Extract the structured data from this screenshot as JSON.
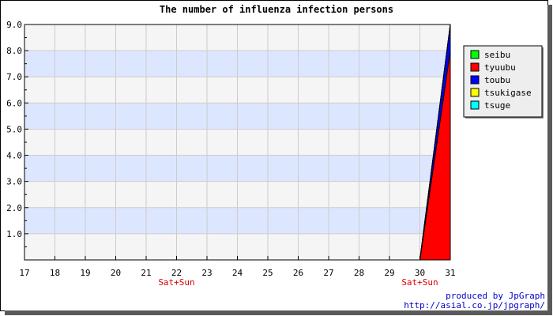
{
  "chart_data": {
    "type": "area",
    "title": "The number of influenza infection persons",
    "xlabel": "",
    "ylabel": "",
    "categories": [
      "17",
      "18",
      "19",
      "20",
      "21",
      "22",
      "23",
      "24",
      "25",
      "26",
      "27",
      "28",
      "29",
      "30",
      "31"
    ],
    "weekend_labels": [
      {
        "category": "22",
        "text": "Sat+Sun"
      },
      {
        "category": "30",
        "text": "Sat+Sun"
      }
    ],
    "ylim": [
      0,
      9
    ],
    "yticks": [
      "1.0",
      "2.0",
      "3.0",
      "4.0",
      "5.0",
      "6.0",
      "7.0",
      "8.0",
      "9.0"
    ],
    "stacked": true,
    "grid": true,
    "legend_position": "top-right",
    "series": [
      {
        "name": "seibu",
        "color": "#00ff00",
        "values": [
          0,
          0,
          0,
          0,
          0,
          0,
          0,
          0,
          0,
          0,
          0,
          0,
          0,
          0,
          0
        ]
      },
      {
        "name": "tyuubu",
        "color": "#ff0000",
        "values": [
          0,
          0,
          0,
          0,
          0,
          0,
          0,
          0,
          0,
          0,
          0,
          0,
          0,
          0,
          8
        ]
      },
      {
        "name": "toubu",
        "color": "#0000ff",
        "values": [
          0,
          0,
          0,
          0,
          0,
          0,
          0,
          0,
          0,
          0,
          0,
          0,
          0,
          0,
          1
        ]
      },
      {
        "name": "tsukigase",
        "color": "#ffff00",
        "values": [
          0,
          0,
          0,
          0,
          0,
          0,
          0,
          0,
          0,
          0,
          0,
          0,
          0,
          0,
          0
        ]
      },
      {
        "name": "tsuge",
        "color": "#00ffff",
        "values": [
          0,
          0,
          0,
          0,
          0,
          0,
          0,
          0,
          0,
          0,
          0,
          0,
          0,
          0,
          0
        ]
      }
    ]
  },
  "footer": {
    "credit_line1": "produced by JpGraph",
    "credit_line2": "http://asial.co.jp/jpgraph/"
  },
  "colors": {
    "band_blue": "#dde6ff",
    "band_light": "#f5f5f5",
    "grid": "#cccccc"
  }
}
